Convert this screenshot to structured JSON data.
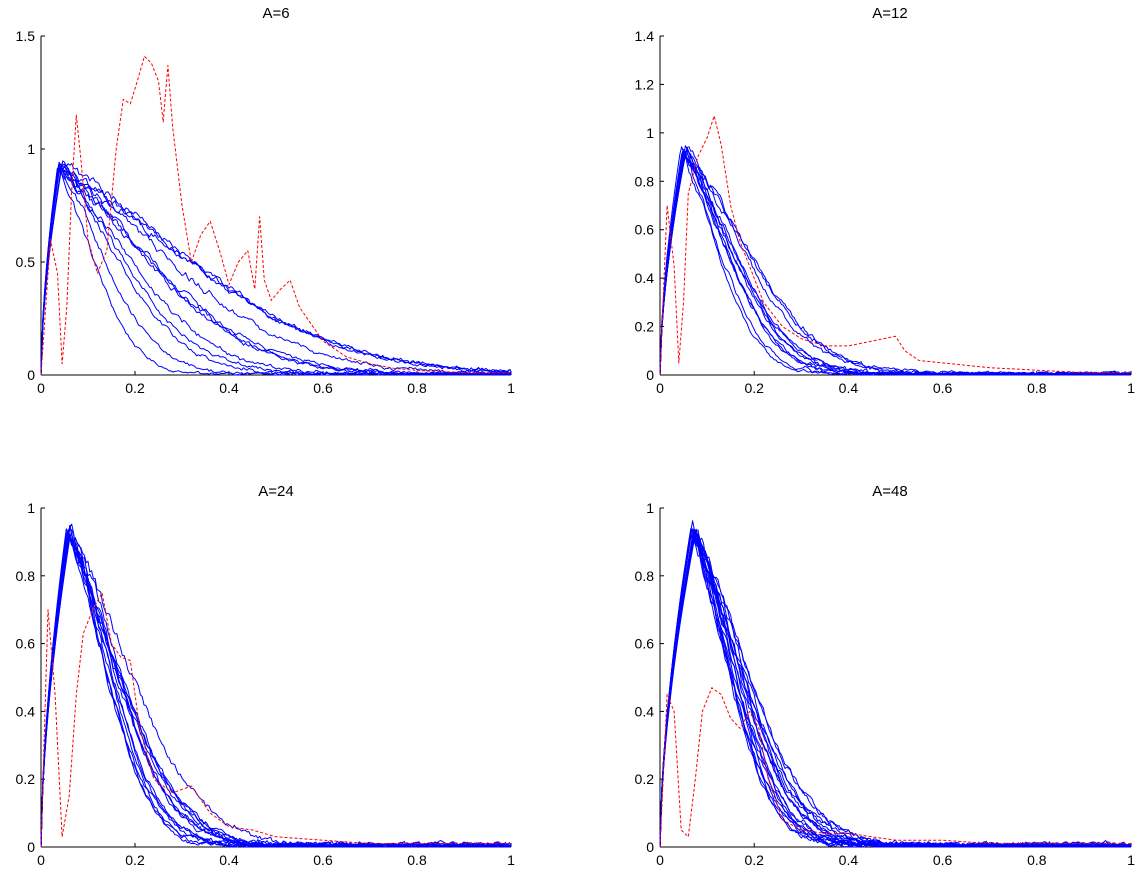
{
  "chart_data": [
    {
      "type": "line",
      "title": "A=6",
      "xlabel": "",
      "ylabel": "",
      "xlim": [
        0,
        1
      ],
      "ylim": [
        0,
        1.5
      ],
      "xticks": [
        0,
        0.2,
        0.4,
        0.6,
        0.8,
        1
      ],
      "xtick_labels": [
        "0",
        "0.2",
        "0.4",
        "0.6",
        "0.8",
        "1"
      ],
      "yticks": [
        0,
        0.5,
        1,
        1.5
      ],
      "ytick_labels": [
        "0",
        "0.5",
        "1",
        "1.5"
      ],
      "grid": false,
      "blue_peak": {
        "x": 0.04,
        "y": 0.94
      },
      "blue_tail_spread": [
        0.14,
        0.62
      ],
      "blue_curve_count": 12,
      "red_color": "#ff0000",
      "blue_color": "#0000ff",
      "red_series": {
        "x": [
          0,
          0.02,
          0.035,
          0.045,
          0.055,
          0.065,
          0.075,
          0.085,
          0.1,
          0.12,
          0.14,
          0.16,
          0.175,
          0.19,
          0.205,
          0.22,
          0.235,
          0.25,
          0.26,
          0.27,
          0.28,
          0.3,
          0.32,
          0.34,
          0.36,
          0.38,
          0.4,
          0.42,
          0.44,
          0.455,
          0.465,
          0.475,
          0.49,
          0.51,
          0.53,
          0.55,
          0.6,
          0.65,
          0.7,
          0.75,
          0.8,
          0.9,
          1.0
        ],
        "y": [
          0,
          0.6,
          0.45,
          0.05,
          0.3,
          0.8,
          1.15,
          0.95,
          0.6,
          0.45,
          0.55,
          1.0,
          1.22,
          1.2,
          1.3,
          1.41,
          1.38,
          1.3,
          1.12,
          1.37,
          1.1,
          0.75,
          0.5,
          0.62,
          0.68,
          0.55,
          0.4,
          0.5,
          0.55,
          0.38,
          0.7,
          0.42,
          0.33,
          0.38,
          0.42,
          0.3,
          0.15,
          0.08,
          0.05,
          0.03,
          0.02,
          0.01,
          0.01
        ]
      }
    },
    {
      "type": "line",
      "title": "A=12",
      "xlabel": "",
      "ylabel": "",
      "xlim": [
        0,
        1
      ],
      "ylim": [
        0,
        1.4
      ],
      "xticks": [
        0,
        0.2,
        0.4,
        0.6,
        0.8,
        1
      ],
      "xtick_labels": [
        "0",
        "0.2",
        "0.4",
        "0.6",
        "0.8",
        "1"
      ],
      "yticks": [
        0,
        0.2,
        0.4,
        0.6,
        0.8,
        1,
        1.2,
        1.4
      ],
      "ytick_labels": [
        "0",
        "0.2",
        "0.4",
        "0.6",
        "0.8",
        "1",
        "1.2",
        "1.4"
      ],
      "grid": false,
      "blue_peak": {
        "x": 0.05,
        "y": 0.94
      },
      "blue_tail_spread": [
        0.14,
        0.26
      ],
      "blue_curve_count": 12,
      "red_color": "#ff0000",
      "blue_color": "#0000ff",
      "red_series": {
        "x": [
          0,
          0.015,
          0.03,
          0.04,
          0.05,
          0.06,
          0.08,
          0.1,
          0.115,
          0.13,
          0.15,
          0.17,
          0.19,
          0.22,
          0.26,
          0.3,
          0.35,
          0.4,
          0.45,
          0.5,
          0.52,
          0.55,
          0.6,
          0.7,
          0.8,
          0.9,
          1.0
        ],
        "y": [
          0,
          0.7,
          0.45,
          0.05,
          0.3,
          0.75,
          0.9,
          0.98,
          1.07,
          0.95,
          0.7,
          0.55,
          0.45,
          0.3,
          0.2,
          0.15,
          0.12,
          0.12,
          0.14,
          0.16,
          0.1,
          0.06,
          0.05,
          0.03,
          0.02,
          0.01,
          0.01
        ]
      }
    },
    {
      "type": "line",
      "title": "A=24",
      "xlabel": "",
      "ylabel": "",
      "xlim": [
        0,
        1
      ],
      "ylim": [
        0,
        1
      ],
      "xticks": [
        0,
        0.2,
        0.4,
        0.6,
        0.8,
        1
      ],
      "xtick_labels": [
        "0",
        "0.2",
        "0.4",
        "0.6",
        "0.8",
        "1"
      ],
      "yticks": [
        0,
        0.2,
        0.4,
        0.6,
        0.8,
        1
      ],
      "ytick_labels": [
        "0",
        "0.2",
        "0.4",
        "0.6",
        "0.8",
        "1"
      ],
      "grid": false,
      "blue_peak": {
        "x": 0.06,
        "y": 0.95
      },
      "blue_tail_spread": [
        0.14,
        0.24
      ],
      "blue_curve_count": 14,
      "red_color": "#ff0000",
      "blue_color": "#0000ff",
      "red_series": {
        "x": [
          0,
          0.015,
          0.03,
          0.045,
          0.06,
          0.075,
          0.09,
          0.11,
          0.13,
          0.15,
          0.17,
          0.19,
          0.21,
          0.24,
          0.28,
          0.32,
          0.36,
          0.4,
          0.45,
          0.5,
          0.6,
          0.7,
          0.8,
          0.9,
          1.0
        ],
        "y": [
          0,
          0.7,
          0.45,
          0.03,
          0.15,
          0.45,
          0.63,
          0.7,
          0.75,
          0.6,
          0.56,
          0.55,
          0.35,
          0.2,
          0.16,
          0.18,
          0.1,
          0.06,
          0.05,
          0.03,
          0.02,
          0.01,
          0.01,
          0.01,
          0.01
        ]
      }
    },
    {
      "type": "line",
      "title": "A=48",
      "xlabel": "",
      "ylabel": "",
      "xlim": [
        0,
        1
      ],
      "ylim": [
        0,
        1
      ],
      "xticks": [
        0,
        0.2,
        0.4,
        0.6,
        0.8,
        1
      ],
      "xtick_labels": [
        "0",
        "0.2",
        "0.4",
        "0.6",
        "0.8",
        "1"
      ],
      "yticks": [
        0,
        0.2,
        0.4,
        0.6,
        0.8,
        1
      ],
      "ytick_labels": [
        "0",
        "0.2",
        "0.4",
        "0.6",
        "0.8",
        "1"
      ],
      "grid": false,
      "blue_peak": {
        "x": 0.07,
        "y": 0.95
      },
      "blue_tail_spread": [
        0.14,
        0.22
      ],
      "blue_curve_count": 18,
      "red_color": "#ff0000",
      "blue_color": "#0000ff",
      "red_series": {
        "x": [
          0,
          0.015,
          0.03,
          0.045,
          0.06,
          0.075,
          0.09,
          0.11,
          0.13,
          0.15,
          0.17,
          0.19,
          0.21,
          0.23,
          0.26,
          0.3,
          0.35,
          0.4,
          0.45,
          0.5,
          0.6,
          0.7,
          0.8,
          0.9,
          1.0
        ],
        "y": [
          0,
          0.45,
          0.4,
          0.05,
          0.03,
          0.2,
          0.4,
          0.47,
          0.45,
          0.38,
          0.35,
          0.4,
          0.35,
          0.2,
          0.08,
          0.05,
          0.04,
          0.04,
          0.03,
          0.02,
          0.02,
          0.01,
          0.01,
          0.01,
          0.01
        ]
      }
    }
  ]
}
